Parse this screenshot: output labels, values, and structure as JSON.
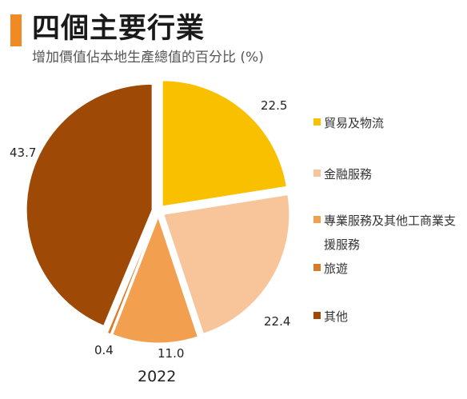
{
  "header": {
    "title": "四個主要行業",
    "subtitle": "增加價值佔本地生產總值的百分比 (%)",
    "accent_color": "#f08a24"
  },
  "chart_data": {
    "type": "pie",
    "title": "四個主要行業",
    "subtitle": "增加價值佔本地生產總值的百分比 (%)",
    "caption": "2022",
    "legend_position": "right",
    "slices": [
      {
        "label": "貿易及物流",
        "value": 22.5,
        "color": "#f9c000",
        "value_label": "22.5"
      },
      {
        "label": "金融服務",
        "value": 22.4,
        "color": "#f8c59a",
        "value_label": "22.4"
      },
      {
        "label": "專業服務及其他工商業支援服務",
        "value": 11.0,
        "color": "#f2a050",
        "value_label": "11.0"
      },
      {
        "label": "旅遊",
        "value": 0.4,
        "color": "#d97a28",
        "value_label": "0.4"
      },
      {
        "label": "其他",
        "value": 43.7,
        "color": "#9e4a06",
        "value_label": "43.7"
      }
    ]
  }
}
